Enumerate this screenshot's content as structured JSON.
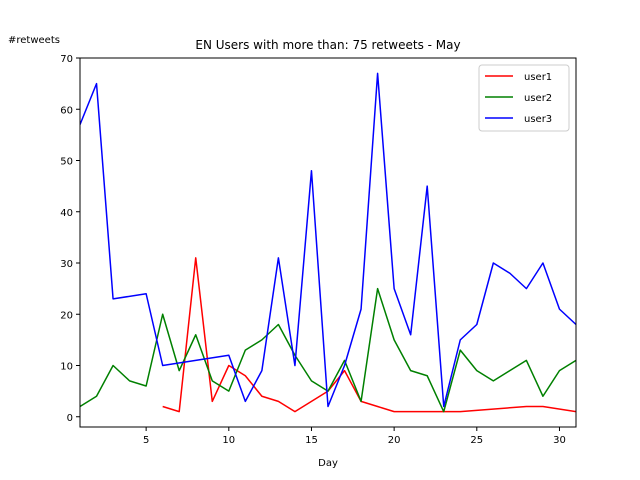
{
  "chart_data": {
    "type": "line",
    "title": "EN Users with more than: 75 retweets - May",
    "xlabel": "Day",
    "ylabel": "#retweets",
    "xlim": [
      1,
      31
    ],
    "ylim": [
      -2,
      70
    ],
    "xticks": [
      5,
      10,
      15,
      20,
      25,
      30
    ],
    "yticks": [
      0,
      10,
      20,
      30,
      40,
      50,
      60,
      70
    ],
    "legend_position": "top-right",
    "grid": false,
    "series": [
      {
        "name": "user1",
        "color": "#ff0000",
        "points": [
          [
            6,
            2
          ],
          [
            7,
            1
          ],
          [
            8,
            31
          ],
          [
            9,
            3
          ],
          [
            10,
            10
          ],
          [
            11,
            8
          ],
          [
            12,
            4
          ],
          [
            13,
            3
          ],
          [
            14,
            1
          ],
          [
            15,
            3
          ],
          [
            16,
            5
          ],
          [
            17,
            9
          ],
          [
            18,
            3
          ],
          [
            19,
            2
          ],
          [
            20,
            1
          ],
          [
            21,
            1
          ],
          [
            22,
            1
          ],
          [
            23,
            1
          ],
          [
            24,
            1
          ],
          [
            28,
            2
          ],
          [
            29,
            2
          ],
          [
            31,
            1
          ]
        ]
      },
      {
        "name": "user2",
        "color": "#008000",
        "points": [
          [
            1,
            2
          ],
          [
            2,
            4
          ],
          [
            3,
            10
          ],
          [
            4,
            7
          ],
          [
            5,
            6
          ],
          [
            6,
            20
          ],
          [
            7,
            9
          ],
          [
            8,
            16
          ],
          [
            9,
            7
          ],
          [
            10,
            5
          ],
          [
            11,
            13
          ],
          [
            12,
            15
          ],
          [
            13,
            18
          ],
          [
            14,
            12
          ],
          [
            15,
            7
          ],
          [
            16,
            5
          ],
          [
            17,
            11
          ],
          [
            18,
            3
          ],
          [
            19,
            25
          ],
          [
            20,
            15
          ],
          [
            21,
            9
          ],
          [
            22,
            8
          ],
          [
            23,
            1
          ],
          [
            24,
            13
          ],
          [
            25,
            9
          ],
          [
            26,
            7
          ],
          [
            28,
            11
          ],
          [
            29,
            4
          ],
          [
            30,
            9
          ],
          [
            31,
            11
          ]
        ]
      },
      {
        "name": "user3",
        "color": "#0000ff",
        "points": [
          [
            1,
            57
          ],
          [
            2,
            65
          ],
          [
            3,
            23
          ],
          [
            5,
            24
          ],
          [
            6,
            10
          ],
          [
            10,
            12
          ],
          [
            11,
            3
          ],
          [
            12,
            9
          ],
          [
            13,
            31
          ],
          [
            14,
            10
          ],
          [
            15,
            48
          ],
          [
            16,
            2
          ],
          [
            17,
            10
          ],
          [
            18,
            21
          ],
          [
            19,
            67
          ],
          [
            20,
            25
          ],
          [
            21,
            16
          ],
          [
            22,
            45
          ],
          [
            23,
            2
          ],
          [
            24,
            15
          ],
          [
            25,
            18
          ],
          [
            26,
            30
          ],
          [
            27,
            28
          ],
          [
            28,
            25
          ],
          [
            29,
            30
          ],
          [
            30,
            21
          ],
          [
            31,
            18
          ]
        ]
      }
    ]
  }
}
